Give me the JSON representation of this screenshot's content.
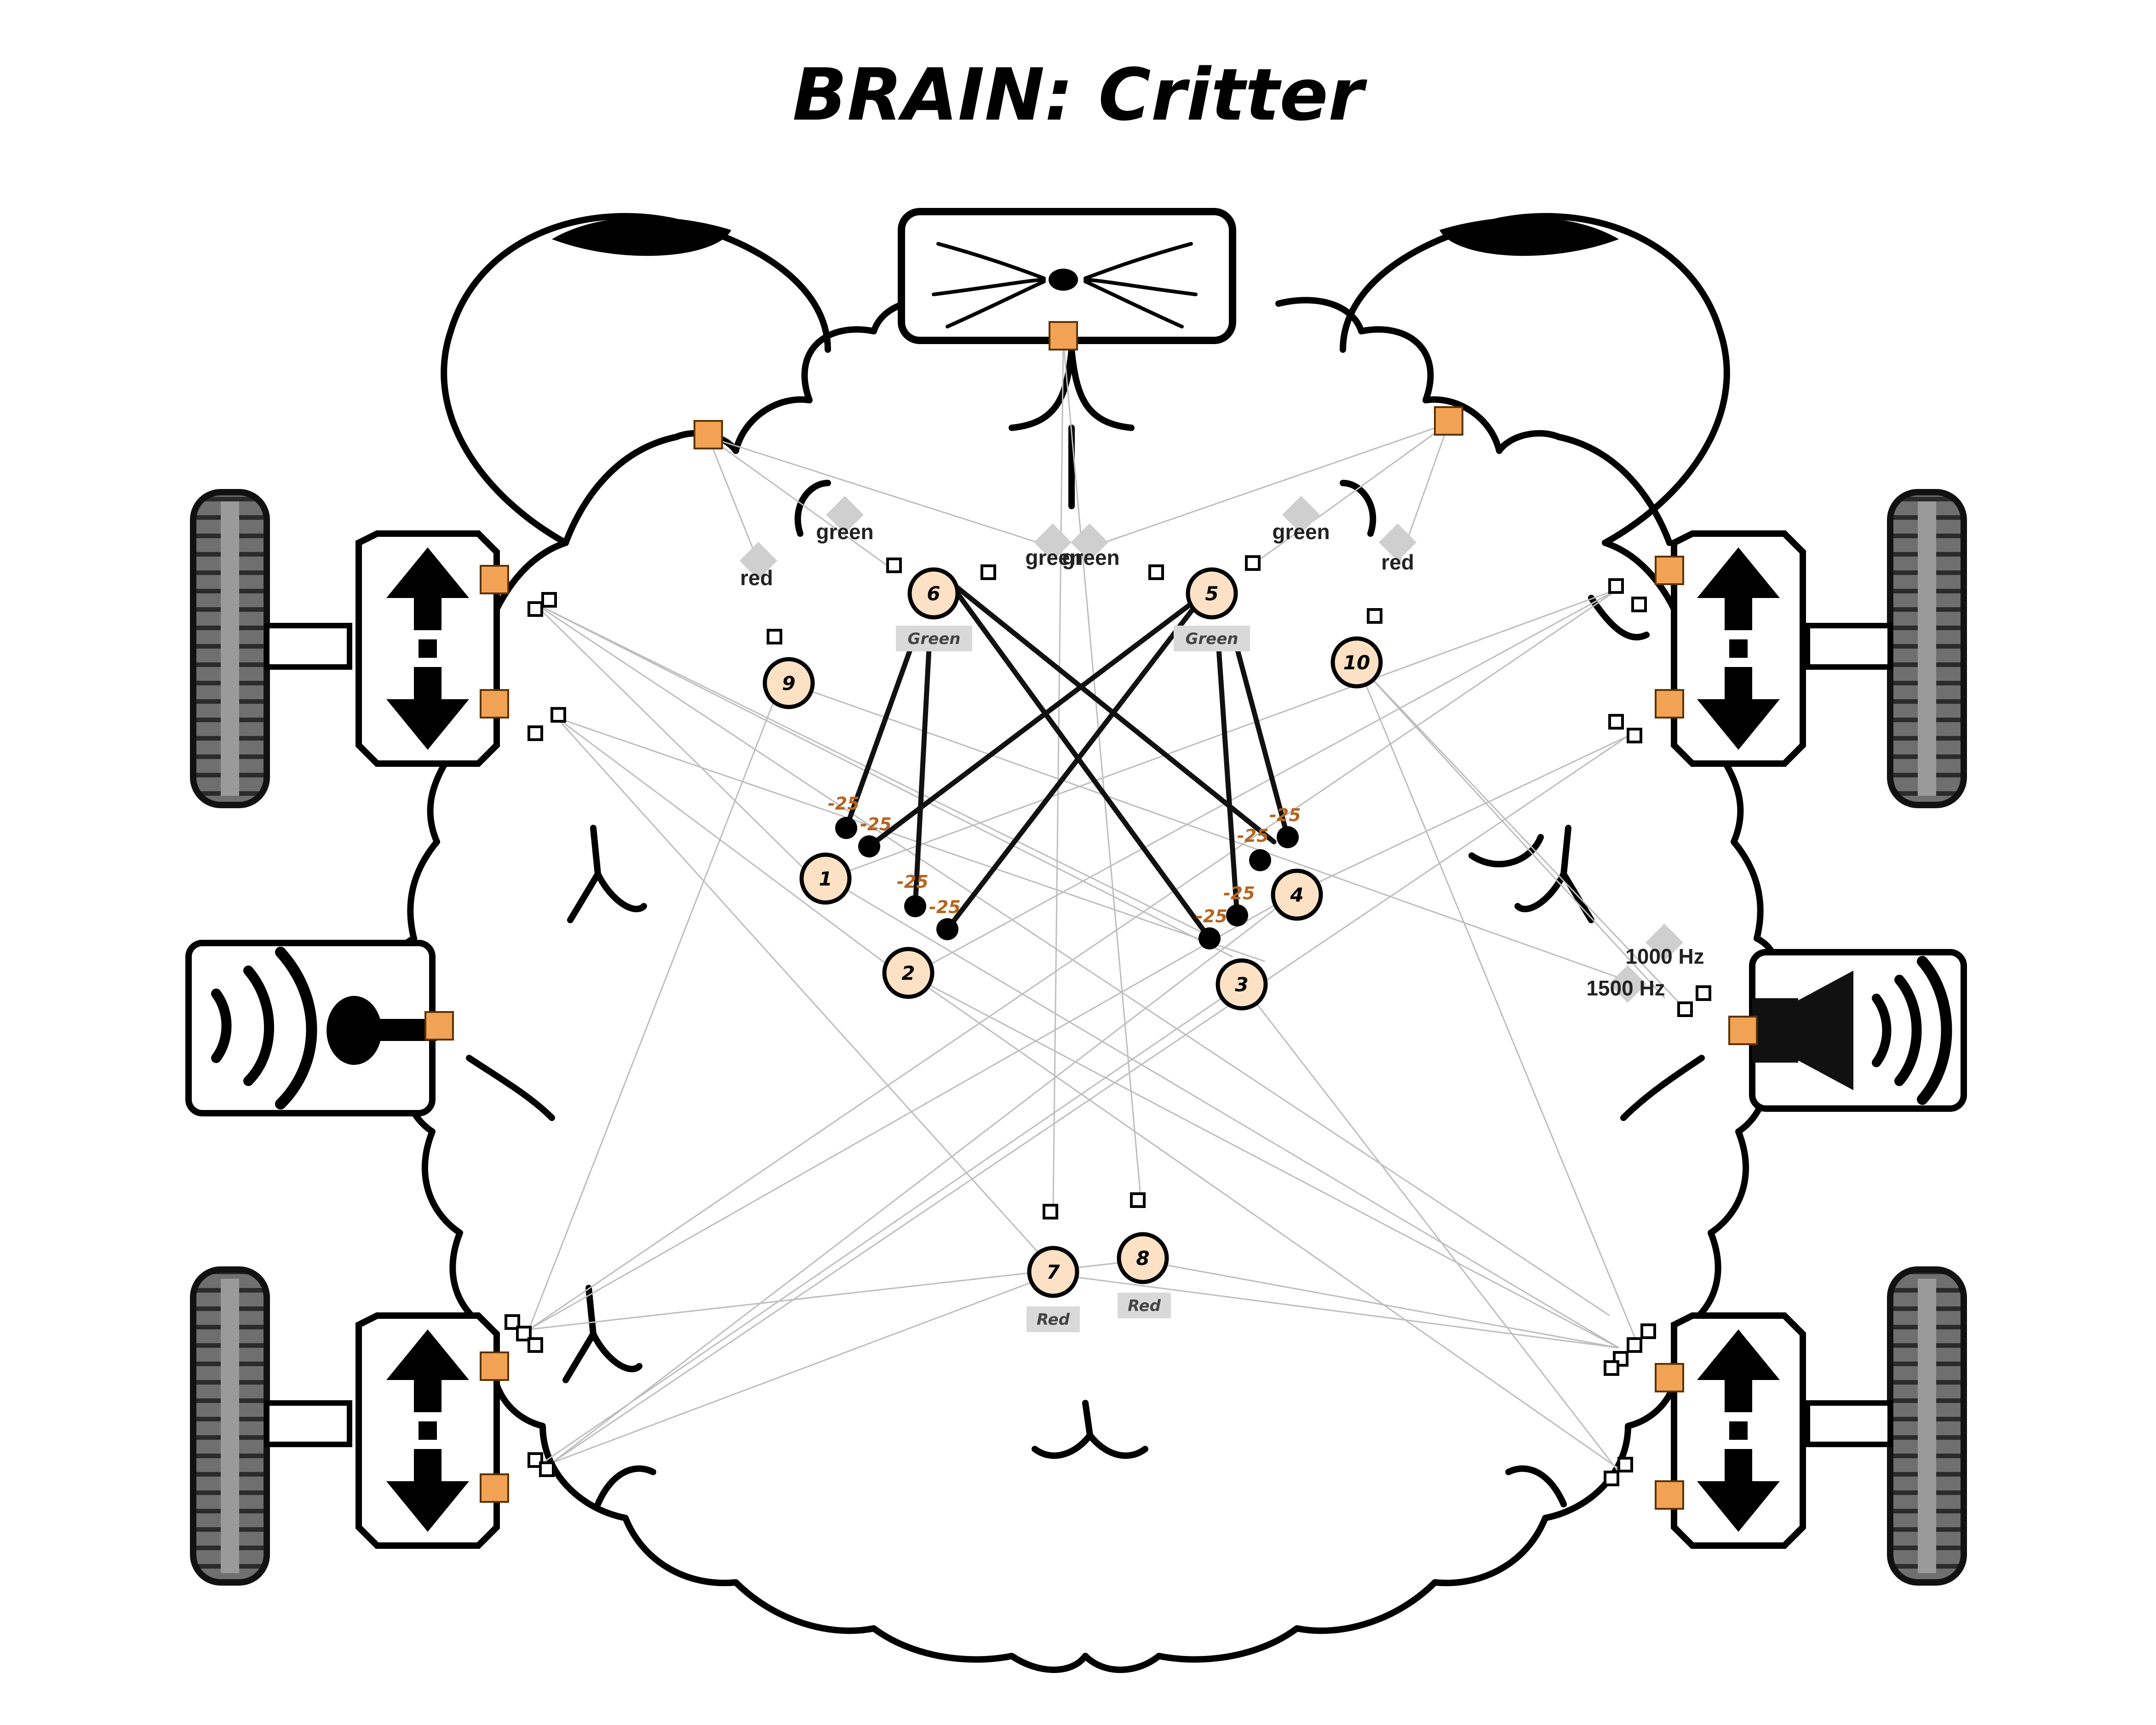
{
  "title": "BRAIN: Critter",
  "colors": {
    "port": "#f2a254",
    "neuron_fill": "#fde1c4",
    "tag_bg": "#d9d9d9",
    "filter_diamond": "#cfcfcf",
    "weight_text": "#b5651d"
  },
  "neurons": [
    {
      "id": "1",
      "label": "1"
    },
    {
      "id": "2",
      "label": "2"
    },
    {
      "id": "3",
      "label": "3"
    },
    {
      "id": "4",
      "label": "4"
    },
    {
      "id": "5",
      "label": "5",
      "tag": "Green"
    },
    {
      "id": "6",
      "label": "6",
      "tag": "Green"
    },
    {
      "id": "7",
      "label": "7",
      "tag": "Red"
    },
    {
      "id": "8",
      "label": "8",
      "tag": "Red"
    },
    {
      "id": "9",
      "label": "9"
    },
    {
      "id": "10",
      "label": "10"
    }
  ],
  "filters": [
    {
      "id": "f-red-left",
      "label": "red"
    },
    {
      "id": "f-green-left",
      "label": "green"
    },
    {
      "id": "f-green-mid-a",
      "label": "green"
    },
    {
      "id": "f-green-mid-b",
      "label": "green"
    },
    {
      "id": "f-green-right",
      "label": "green"
    },
    {
      "id": "f-red-right",
      "label": "red"
    },
    {
      "id": "f-1000",
      "label": "1000 Hz"
    },
    {
      "id": "f-1500",
      "label": "1500 Hz"
    }
  ],
  "weights": [
    "-25",
    "-25",
    "-25",
    "-25",
    "-25",
    "-25",
    "-25",
    "-25"
  ],
  "icons": [
    "eye-icon",
    "whisker-sensor-icon",
    "wheel-icon",
    "motor-arrows-icon",
    "microphone-icon",
    "speaker-icon"
  ]
}
